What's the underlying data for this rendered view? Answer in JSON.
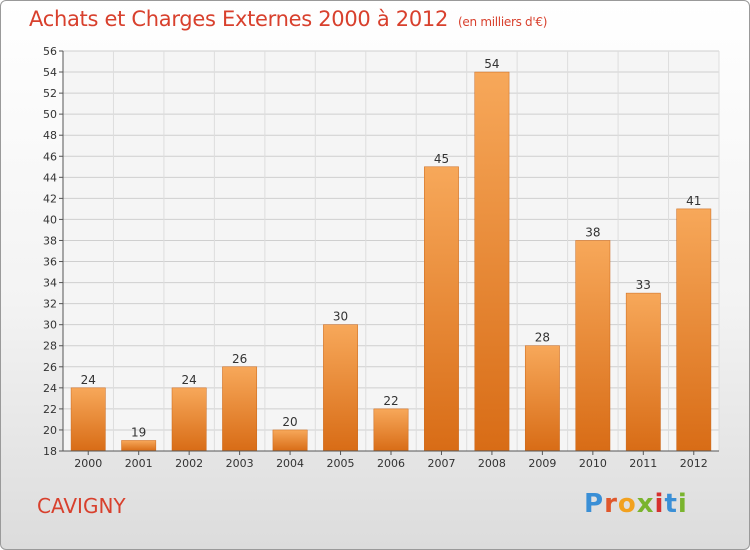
{
  "header": {
    "title": "Achats et Charges Externes 2000 à 2012",
    "subtitle": "(en milliers d'€)"
  },
  "footer": {
    "place": "CAVIGNY",
    "logo_letters": [
      "P",
      "r",
      "o",
      "x",
      "i",
      "t",
      "i"
    ]
  },
  "chart_data": {
    "type": "bar",
    "title": "Achats et Charges Externes 2000 à 2012",
    "subtitle": "(en milliers d'€)",
    "xlabel": "",
    "ylabel": "",
    "categories": [
      "2000",
      "2001",
      "2002",
      "2003",
      "2004",
      "2005",
      "2006",
      "2007",
      "2008",
      "2009",
      "2010",
      "2011",
      "2012"
    ],
    "values": [
      24,
      19,
      24,
      26,
      20,
      30,
      22,
      45,
      54,
      28,
      38,
      33,
      41
    ],
    "ylim": [
      18,
      56
    ],
    "yticks": [
      18,
      20,
      22,
      24,
      26,
      28,
      30,
      32,
      34,
      36,
      38,
      40,
      42,
      44,
      46,
      48,
      50,
      52,
      54,
      56
    ],
    "grid": true,
    "bar_color": "#f08c30"
  }
}
